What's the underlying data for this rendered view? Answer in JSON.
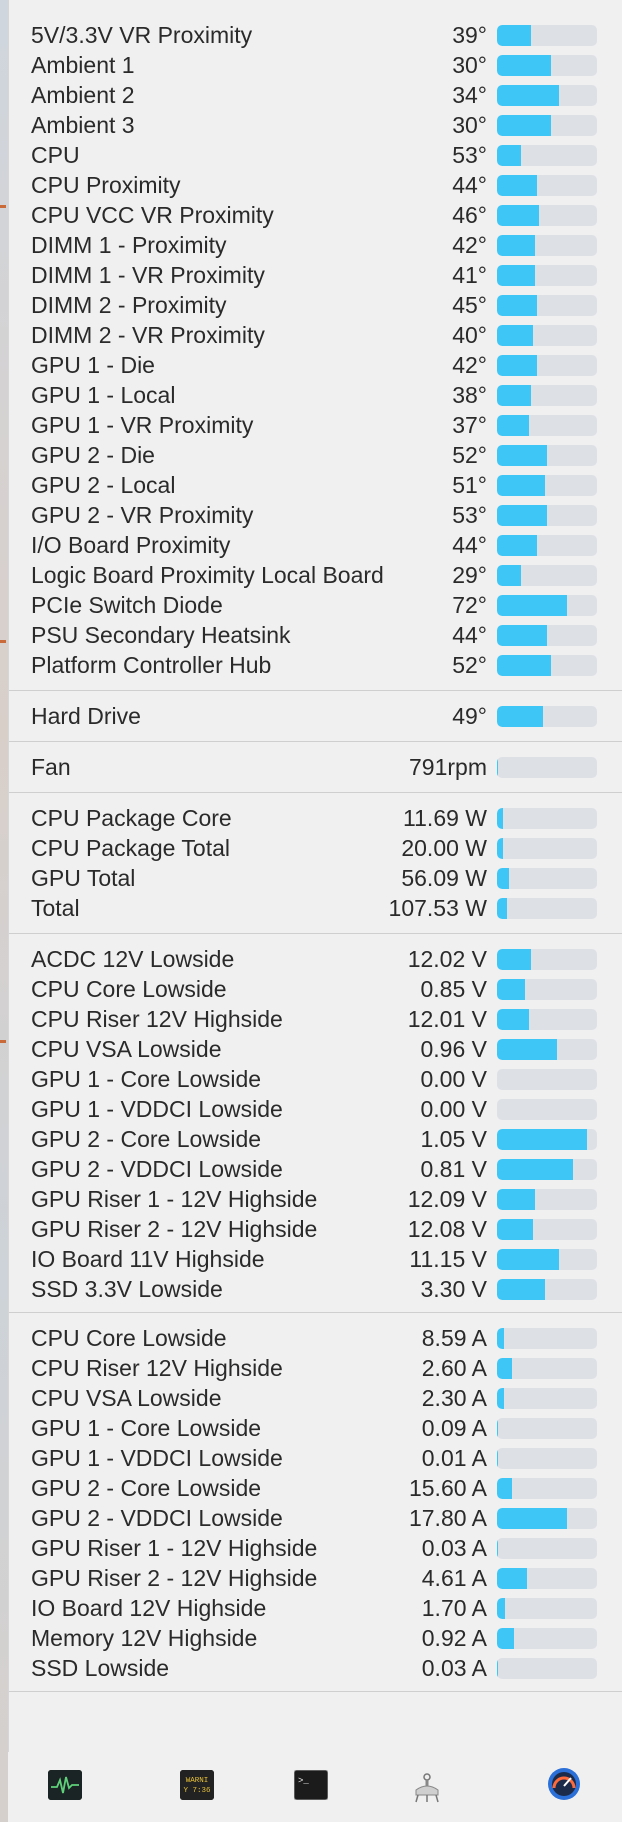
{
  "sections": [
    {
      "rows": [
        {
          "label": "5V/3.3V VR Proximity",
          "value": "39°",
          "level": 0.34
        },
        {
          "label": "Ambient 1",
          "value": "30°",
          "level": 0.54
        },
        {
          "label": "Ambient 2",
          "value": "34°",
          "level": 0.62
        },
        {
          "label": "Ambient 3",
          "value": "30°",
          "level": 0.54
        },
        {
          "label": "CPU",
          "value": "53°",
          "level": 0.24
        },
        {
          "label": "CPU Proximity",
          "value": "44°",
          "level": 0.4
        },
        {
          "label": "CPU VCC VR Proximity",
          "value": "46°",
          "level": 0.42
        },
        {
          "label": "DIMM 1 - Proximity",
          "value": "42°",
          "level": 0.38
        },
        {
          "label": "DIMM 1 - VR Proximity",
          "value": "41°",
          "level": 0.38
        },
        {
          "label": "DIMM 2 - Proximity",
          "value": "45°",
          "level": 0.4
        },
        {
          "label": "DIMM 2 - VR Proximity",
          "value": "40°",
          "level": 0.36
        },
        {
          "label": "GPU 1 - Die",
          "value": "42°",
          "level": 0.4
        },
        {
          "label": "GPU 1 - Local",
          "value": "38°",
          "level": 0.34
        },
        {
          "label": "GPU 1 - VR Proximity",
          "value": "37°",
          "level": 0.32
        },
        {
          "label": "GPU 2 - Die",
          "value": "52°",
          "level": 0.5
        },
        {
          "label": "GPU 2 - Local",
          "value": "51°",
          "level": 0.48
        },
        {
          "label": "GPU 2 - VR Proximity",
          "value": "53°",
          "level": 0.5
        },
        {
          "label": "I/O Board Proximity",
          "value": "44°",
          "level": 0.4
        },
        {
          "label": "Logic Board Proximity Local Board",
          "value": "29°",
          "level": 0.24
        },
        {
          "label": "PCIe Switch Diode",
          "value": "72°",
          "level": 0.7
        },
        {
          "label": "PSU Secondary Heatsink",
          "value": "44°",
          "level": 0.5
        },
        {
          "label": "Platform Controller Hub",
          "value": "52°",
          "level": 0.54
        }
      ]
    },
    {
      "rows": [
        {
          "label": "Hard Drive",
          "value": "49°",
          "level": 0.46
        }
      ]
    },
    {
      "rows": [
        {
          "label": "Fan",
          "value": "791rpm",
          "level": 0.01
        }
      ]
    },
    {
      "rows": [
        {
          "label": "CPU Package Core",
          "value": "11.69 W",
          "level": 0.06
        },
        {
          "label": "CPU Package Total",
          "value": "20.00 W",
          "level": 0.06
        },
        {
          "label": "GPU Total",
          "value": "56.09 W",
          "level": 0.12
        },
        {
          "label": "Total",
          "value": "107.53 W",
          "level": 0.1
        }
      ]
    },
    {
      "rows": [
        {
          "label": "ACDC 12V Lowside",
          "value": "12.02 V",
          "level": 0.34
        },
        {
          "label": "CPU Core Lowside",
          "value": "0.85 V",
          "level": 0.28
        },
        {
          "label": "CPU Riser 12V Highside",
          "value": "12.01 V",
          "level": 0.32
        },
        {
          "label": "CPU VSA Lowside",
          "value": "0.96 V",
          "level": 0.6
        },
        {
          "label": "GPU 1 - Core Lowside",
          "value": "0.00 V",
          "level": 0.0
        },
        {
          "label": "GPU 1 - VDDCI Lowside",
          "value": "0.00 V",
          "level": 0.0
        },
        {
          "label": "GPU 2 - Core Lowside",
          "value": "1.05 V",
          "level": 0.9
        },
        {
          "label": "GPU 2 - VDDCI Lowside",
          "value": "0.81 V",
          "level": 0.76
        },
        {
          "label": "GPU Riser 1 - 12V Highside",
          "value": "12.09 V",
          "level": 0.38
        },
        {
          "label": "GPU Riser 2 - 12V Highside",
          "value": "12.08 V",
          "level": 0.36
        },
        {
          "label": "IO Board 11V Highside",
          "value": "11.15 V",
          "level": 0.62
        },
        {
          "label": "SSD 3.3V Lowside",
          "value": "3.30 V",
          "level": 0.48
        }
      ]
    },
    {
      "rows": [
        {
          "label": "CPU Core Lowside",
          "value": "8.59 A",
          "level": 0.07
        },
        {
          "label": "CPU Riser 12V Highside",
          "value": "2.60 A",
          "level": 0.15
        },
        {
          "label": "CPU VSA Lowside",
          "value": "2.30 A",
          "level": 0.07
        },
        {
          "label": "GPU 1 - Core Lowside",
          "value": "0.09 A",
          "level": 0.01
        },
        {
          "label": "GPU 1 - VDDCI Lowside",
          "value": "0.01 A",
          "level": 0.01
        },
        {
          "label": "GPU 2 - Core Lowside",
          "value": "15.60 A",
          "level": 0.15
        },
        {
          "label": "GPU 2 - VDDCI Lowside",
          "value": "17.80 A",
          "level": 0.7
        },
        {
          "label": "GPU Riser 1 - 12V Highside",
          "value": "0.03 A",
          "level": 0.01
        },
        {
          "label": "GPU Riser 2 - 12V Highside",
          "value": "4.61 A",
          "level": 0.3
        },
        {
          "label": "IO Board 12V Highside",
          "value": "1.70 A",
          "level": 0.08
        },
        {
          "label": "Memory 12V Highside",
          "value": "0.92 A",
          "level": 0.17
        },
        {
          "label": "SSD Lowside",
          "value": "0.03 A",
          "level": 0.01
        }
      ]
    }
  ],
  "toolbar": {
    "items": [
      {
        "name": "activity-monitor-icon"
      },
      {
        "name": "console-icon",
        "text": "WARNI",
        "text2": "Y 7:36"
      },
      {
        "name": "terminal-icon",
        "text": ">_"
      },
      {
        "name": "system-information-icon"
      },
      {
        "name": "istat-menus-icon"
      }
    ]
  },
  "colors": {
    "bar_fill": "#3ec7f6",
    "bar_track": "#dde0e5",
    "panel": "#f1f0f1"
  }
}
